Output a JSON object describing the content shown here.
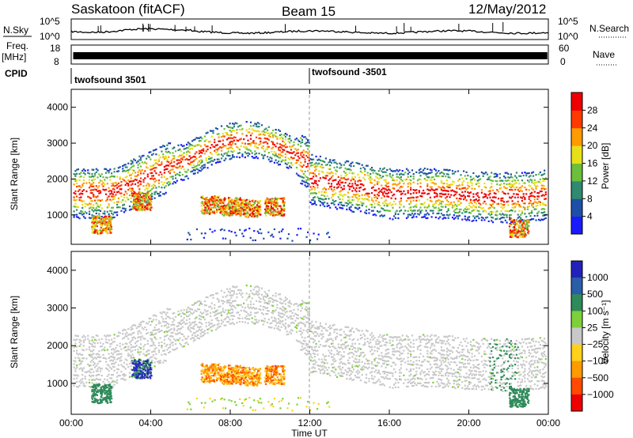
{
  "header": {
    "station": "Saskatoon (fitACF)",
    "beam": "Beam 15",
    "date": "12/May/2012"
  },
  "strip_labels": {
    "nsky": "N.Sky",
    "nsky_ticks": [
      "10^5",
      "10^0"
    ],
    "nsearch": "N.Search",
    "freq": "Freq.",
    "freq_unit": "[MHz]",
    "freq_ticks": [
      "18",
      "8"
    ],
    "nave": "Nave",
    "nave_ticks": [
      "60",
      "0"
    ],
    "cpid": "CPID"
  },
  "cpid_segments": [
    {
      "label": "twofsound 3501",
      "start": "00:00"
    },
    {
      "label": "twofsound -3501",
      "start": "12:00"
    }
  ],
  "axes": {
    "xlabel": "Time UT",
    "ylabel": "Slant Range [km]",
    "x_ticks": [
      "00:00",
      "04:00",
      "08:00",
      "12:00",
      "16:00",
      "20:00",
      "00:00"
    ],
    "y_ticks": [
      "1000",
      "2000",
      "3000",
      "4000"
    ]
  },
  "chart_data": [
    {
      "type": "heatmap",
      "title": "Power",
      "x_range_hours": [
        0,
        24
      ],
      "y_range_km": [
        180,
        4500
      ],
      "colorbar": {
        "label": "Power [dB]",
        "ticks": [
          "4",
          "8",
          "12",
          "16",
          "20",
          "24",
          "28"
        ],
        "colors": [
          "#1a1aff",
          "#1e4fa8",
          "#2f8a6f",
          "#6cbf3a",
          "#e6e01a",
          "#ff9a00",
          "#ff3a00",
          "#ee0000"
        ]
      }
    },
    {
      "type": "heatmap",
      "title": "Velocity",
      "x_range_hours": [
        0,
        24
      ],
      "y_range_km": [
        180,
        4500
      ],
      "colorbar": {
        "label": "Velocity [m s⁻¹]",
        "ticks": [
          "1000",
          "500",
          "100",
          "25",
          "−25",
          "−100",
          "−500",
          "−1000"
        ],
        "colors": [
          "#2222bb",
          "#2a5ea8",
          "#2f8a5a",
          "#7ed03a",
          "#c8c8c8",
          "#ffd11a",
          "#ff9a00",
          "#ff4a00",
          "#ee0000"
        ]
      }
    }
  ]
}
